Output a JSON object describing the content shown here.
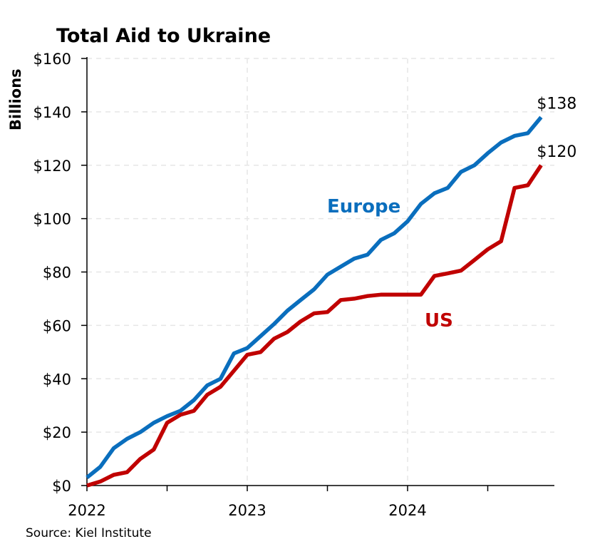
{
  "chart_data": {
    "type": "line",
    "title": "Total Aid to Ukraine",
    "ylabel": "Billions",
    "ylim": [
      0,
      160
    ],
    "y_ticks": [
      0,
      20,
      40,
      60,
      80,
      100,
      120,
      140,
      160
    ],
    "y_tick_labels": [
      "$0",
      "$20",
      "$40",
      "$60",
      "$80",
      "$100",
      "$120",
      "$140",
      "$160"
    ],
    "x_range": [
      2022.0,
      2024.92
    ],
    "x_tick_labels": [
      {
        "x": 2022,
        "label": "2022"
      },
      {
        "x": 2023,
        "label": "2023"
      },
      {
        "x": 2024,
        "label": "2024"
      }
    ],
    "x_minor_ticks": [
      2022.5,
      2023.5,
      2024.5
    ],
    "grid": "dashed vertical and horizontal",
    "source": "Source: Kiel Institute",
    "series": [
      {
        "name": "Europe",
        "color": "#0a6ebd",
        "end_label": "$138",
        "x": [
          2022.0,
          2022.083,
          2022.167,
          2022.25,
          2022.333,
          2022.417,
          2022.5,
          2022.583,
          2022.667,
          2022.75,
          2022.833,
          2022.917,
          2023.0,
          2023.083,
          2023.167,
          2023.25,
          2023.333,
          2023.417,
          2023.5,
          2023.583,
          2023.667,
          2023.75,
          2023.833,
          2023.917,
          2024.0,
          2024.083,
          2024.167,
          2024.25,
          2024.333,
          2024.417,
          2024.5,
          2024.583,
          2024.667,
          2024.75,
          2024.833
        ],
        "y": [
          3,
          7,
          14,
          17.5,
          20,
          23.5,
          26,
          28,
          32,
          37.5,
          40,
          49.5,
          51.5,
          56,
          60.5,
          65.5,
          69.5,
          73.5,
          79,
          82,
          85,
          86.5,
          92,
          94.5,
          99,
          105.5,
          109.5,
          111.5,
          117.5,
          120,
          124.5,
          128.5,
          131,
          132,
          138
        ]
      },
      {
        "name": "US",
        "color": "#c00000",
        "end_label": "$120",
        "x": [
          2022.0,
          2022.083,
          2022.167,
          2022.25,
          2022.333,
          2022.417,
          2022.5,
          2022.583,
          2022.667,
          2022.75,
          2022.833,
          2022.917,
          2023.0,
          2023.083,
          2023.167,
          2023.25,
          2023.333,
          2023.417,
          2023.5,
          2023.583,
          2023.667,
          2023.75,
          2023.833,
          2023.917,
          2024.0,
          2024.083,
          2024.167,
          2024.25,
          2024.333,
          2024.417,
          2024.5,
          2024.583,
          2024.667,
          2024.75,
          2024.833
        ],
        "y": [
          0,
          1.5,
          4,
          5,
          10,
          13.5,
          23.5,
          26.5,
          28,
          34,
          37,
          43,
          49,
          50,
          55,
          57.5,
          61.5,
          64.5,
          65,
          69.5,
          70,
          71,
          71.5,
          71.5,
          71.5,
          71.5,
          78.5,
          79.5,
          80.5,
          84.5,
          88.5,
          91.5,
          111.5,
          112.5,
          120
        ]
      }
    ]
  }
}
